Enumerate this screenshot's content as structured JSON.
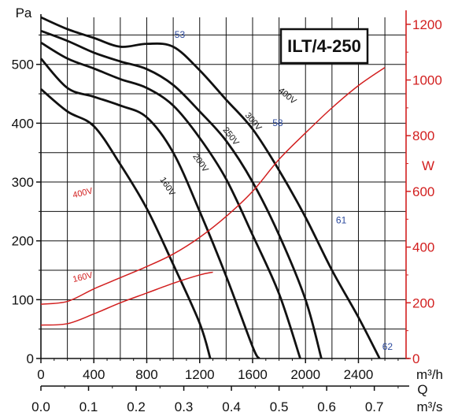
{
  "chart_data": {
    "type": "line",
    "title": "ILT/4-250",
    "y_left": {
      "label": "Pa",
      "ticks": [
        "0",
        "100",
        "200",
        "300",
        "400",
        "500"
      ],
      "range": [
        0,
        580
      ]
    },
    "y_right": {
      "label": "W",
      "ticks": [
        "0",
        "200",
        "400",
        "600",
        "800",
        "1000",
        "1200"
      ],
      "range": [
        0,
        1225
      ]
    },
    "x_top": {
      "label": "m³/h",
      "ticks": [
        "0",
        "400",
        "800",
        "1200",
        "1600",
        "2000",
        "2400"
      ],
      "range": [
        0,
        2760
      ]
    },
    "x_bottom": {
      "label": "m³/s",
      "axis_name": "Q",
      "ticks": [
        "0.0",
        "0.1",
        "0.2",
        "0.3",
        "0.4",
        "0.5",
        "0.6",
        "0.7"
      ]
    },
    "series": [
      {
        "name": "400V",
        "values": [
          [
            0,
            580
          ],
          [
            200,
            560
          ],
          [
            400,
            545
          ],
          [
            600,
            530
          ],
          [
            800,
            535
          ],
          [
            1000,
            530
          ],
          [
            1200,
            490
          ],
          [
            1400,
            440
          ],
          [
            1600,
            390
          ],
          [
            1800,
            320
          ],
          [
            2000,
            240
          ],
          [
            2200,
            150
          ],
          [
            2400,
            70
          ],
          [
            2560,
            0
          ]
        ]
      },
      {
        "name": "300V",
        "values": [
          [
            0,
            557
          ],
          [
            200,
            540
          ],
          [
            400,
            520
          ],
          [
            600,
            505
          ],
          [
            800,
            492
          ],
          [
            1000,
            465
          ],
          [
            1200,
            420
          ],
          [
            1400,
            370
          ],
          [
            1600,
            300
          ],
          [
            1800,
            210
          ],
          [
            2000,
            100
          ],
          [
            2120,
            0
          ]
        ]
      },
      {
        "name": "250V",
        "values": [
          [
            0,
            537
          ],
          [
            200,
            510
          ],
          [
            400,
            493
          ],
          [
            600,
            475
          ],
          [
            800,
            460
          ],
          [
            1000,
            430
          ],
          [
            1200,
            375
          ],
          [
            1400,
            305
          ],
          [
            1600,
            210
          ],
          [
            1800,
            110
          ],
          [
            1960,
            0
          ]
        ]
      },
      {
        "name": "200V",
        "values": [
          [
            0,
            510
          ],
          [
            200,
            460
          ],
          [
            400,
            445
          ],
          [
            600,
            430
          ],
          [
            800,
            410
          ],
          [
            1000,
            350
          ],
          [
            1200,
            250
          ],
          [
            1400,
            140
          ],
          [
            1600,
            20
          ],
          [
            1650,
            0
          ]
        ]
      },
      {
        "name": "160V",
        "values": [
          [
            0,
            458
          ],
          [
            200,
            420
          ],
          [
            400,
            395
          ],
          [
            600,
            330
          ],
          [
            800,
            255
          ],
          [
            1000,
            160
          ],
          [
            1200,
            60
          ],
          [
            1280,
            0
          ]
        ]
      }
    ],
    "power_series": [
      {
        "name": "400V",
        "values": [
          [
            0,
            195
          ],
          [
            200,
            205
          ],
          [
            400,
            250
          ],
          [
            600,
            290
          ],
          [
            800,
            330
          ],
          [
            1000,
            375
          ],
          [
            1200,
            435
          ],
          [
            1400,
            510
          ],
          [
            1600,
            600
          ],
          [
            1800,
            715
          ],
          [
            2000,
            810
          ],
          [
            2200,
            900
          ],
          [
            2400,
            980
          ],
          [
            2600,
            1045
          ]
        ]
      },
      {
        "name": "160V",
        "values": [
          [
            0,
            120
          ],
          [
            200,
            125
          ],
          [
            400,
            160
          ],
          [
            600,
            200
          ],
          [
            800,
            235
          ],
          [
            1000,
            270
          ],
          [
            1200,
            300
          ],
          [
            1300,
            310
          ]
        ]
      }
    ],
    "power_labels": [
      "400V",
      "160V"
    ],
    "point_labels": [
      "53",
      "58",
      "61",
      "62"
    ],
    "grid": true
  }
}
